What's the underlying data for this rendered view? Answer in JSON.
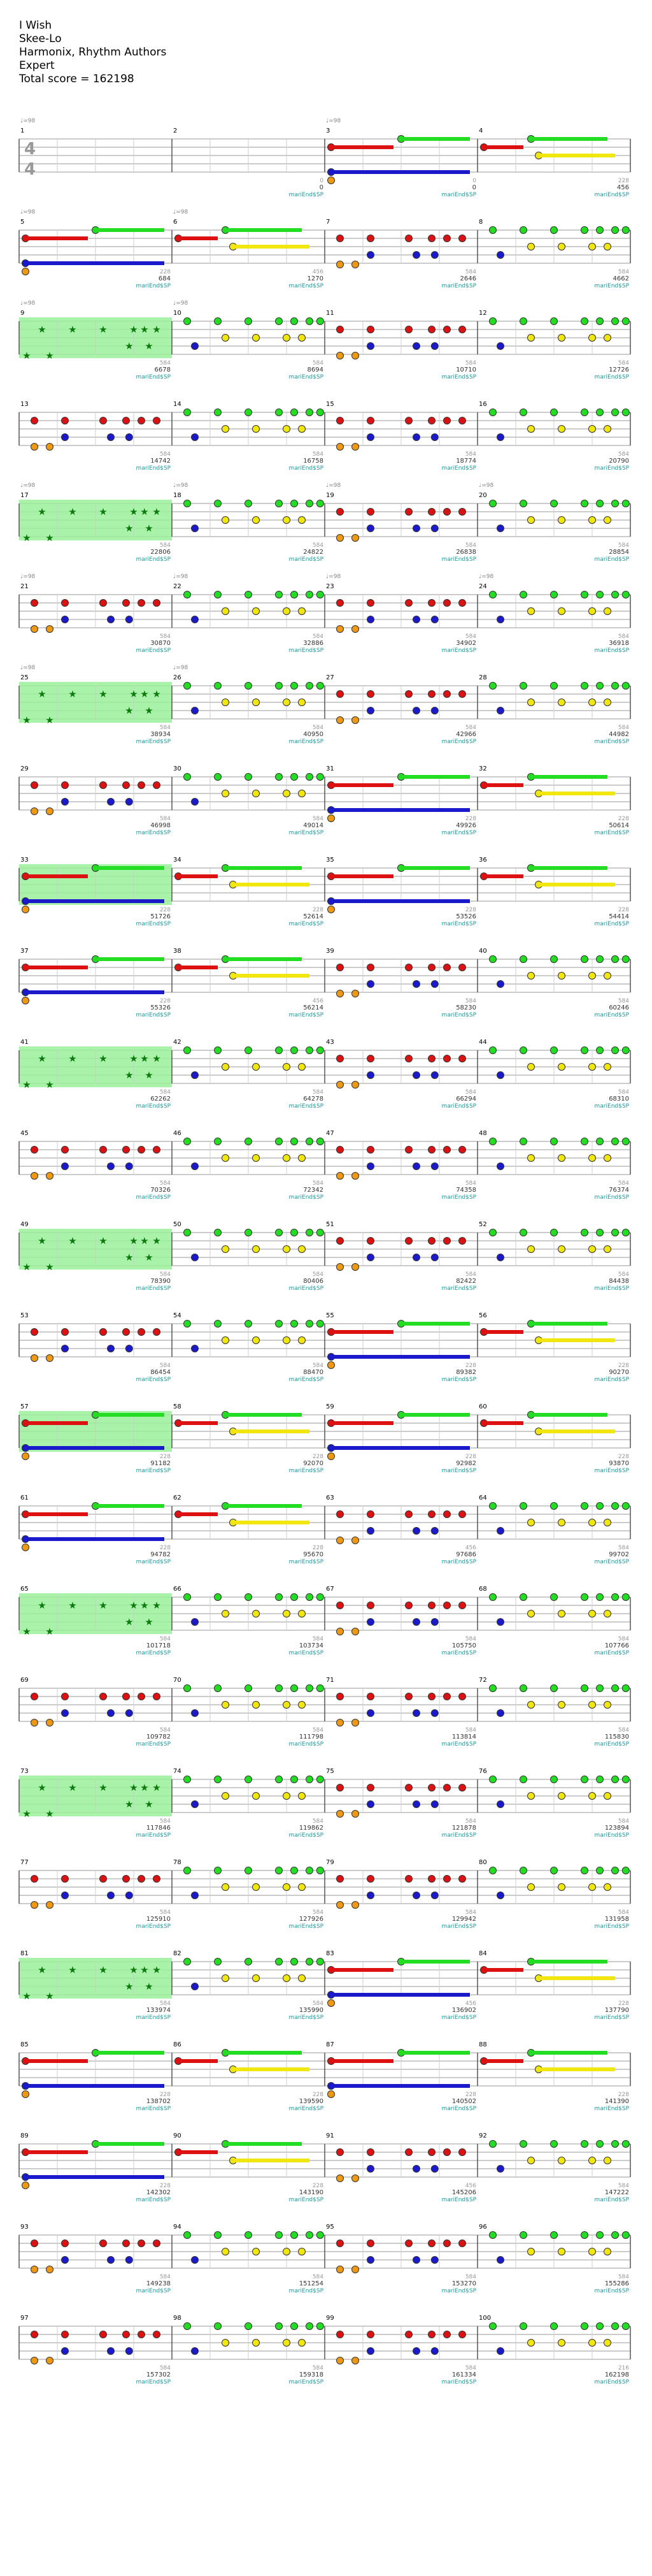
{
  "song": {
    "title": "I Wish",
    "artist": "Skee-Lo",
    "charter": "Harmonix, Rhythm Authors",
    "difficulty": "Expert",
    "total_score_label": "Total score = 162198"
  },
  "time_signature": {
    "numerator": "4",
    "denominator": "4"
  },
  "tempo_label": "♩=98",
  "measure_tag": "mariEnd$SP",
  "colors": {
    "green": "#22dd22",
    "red": "#dd1111",
    "yellow": "#f2e60f",
    "blue": "#1a1acc",
    "orange": "#ee9911",
    "sp": "#9af09a",
    "staff": "#999999"
  },
  "rows": [
    {
      "row": 1,
      "measures": [
        {
          "n": "1",
          "score": "",
          "bar": "",
          "pattern": "empty",
          "sp": false,
          "tempo": true
        },
        {
          "n": "2",
          "score": "0",
          "bar": "0",
          "pattern": "empty",
          "sp": false,
          "tempo": false
        },
        {
          "n": "3",
          "score": "0",
          "bar": "0",
          "pattern": "sustain",
          "sp": false,
          "tempo": true
        },
        {
          "n": "4",
          "score": "228",
          "bar": "456",
          "pattern": "sustain2",
          "sp": false,
          "tempo": false
        }
      ]
    },
    {
      "row": 2,
      "measures": [
        {
          "n": "5",
          "score": "228",
          "bar": "684",
          "pattern": "sustain",
          "sp": false,
          "tempo": true
        },
        {
          "n": "6",
          "score": "456",
          "bar": "1270",
          "pattern": "sustain2",
          "sp": false,
          "tempo": true
        },
        {
          "n": "7",
          "score": "584",
          "bar": "2646",
          "pattern": "red",
          "sp": false,
          "tempo": false
        },
        {
          "n": "8",
          "score": "584",
          "bar": "4662",
          "pattern": "greenyellow",
          "sp": false,
          "tempo": false
        }
      ]
    },
    {
      "row": 3,
      "measures": [
        {
          "n": "9",
          "score": "584",
          "bar": "6678",
          "pattern": "stars",
          "sp": true,
          "tempo": true
        },
        {
          "n": "10",
          "score": "584",
          "bar": "8694",
          "pattern": "greenyellow",
          "sp": false,
          "tempo": true
        },
        {
          "n": "11",
          "score": "584",
          "bar": "10710",
          "pattern": "red",
          "sp": false,
          "tempo": false
        },
        {
          "n": "12",
          "score": "584",
          "bar": "12726",
          "pattern": "greenyellow",
          "sp": false,
          "tempo": false
        }
      ]
    },
    {
      "row": 4,
      "measures": [
        {
          "n": "13",
          "score": "584",
          "bar": "14742",
          "pattern": "red",
          "sp": false,
          "tempo": false
        },
        {
          "n": "14",
          "score": "584",
          "bar": "16758",
          "pattern": "greenyellow",
          "sp": false,
          "tempo": false
        },
        {
          "n": "15",
          "score": "584",
          "bar": "18774",
          "pattern": "red",
          "sp": false,
          "tempo": false
        },
        {
          "n": "16",
          "score": "584",
          "bar": "20790",
          "pattern": "greenyellow",
          "sp": false,
          "tempo": false
        }
      ]
    },
    {
      "row": 5,
      "measures": [
        {
          "n": "17",
          "score": "584",
          "bar": "22806",
          "pattern": "stars",
          "sp": true,
          "tempo": true
        },
        {
          "n": "18",
          "score": "584",
          "bar": "24822",
          "pattern": "greenyellow",
          "sp": false,
          "tempo": true
        },
        {
          "n": "19",
          "score": "584",
          "bar": "26838",
          "pattern": "red",
          "sp": false,
          "tempo": true
        },
        {
          "n": "20",
          "score": "584",
          "bar": "28854",
          "pattern": "greenyellow",
          "sp": false,
          "tempo": true
        }
      ]
    },
    {
      "row": 6,
      "measures": [
        {
          "n": "21",
          "score": "584",
          "bar": "30870",
          "pattern": "red",
          "sp": false,
          "tempo": true
        },
        {
          "n": "22",
          "score": "584",
          "bar": "32886",
          "pattern": "greenyellow",
          "sp": false,
          "tempo": true
        },
        {
          "n": "23",
          "score": "584",
          "bar": "34902",
          "pattern": "red",
          "sp": false,
          "tempo": true
        },
        {
          "n": "24",
          "score": "584",
          "bar": "36918",
          "pattern": "greenyellow",
          "sp": false,
          "tempo": true
        }
      ]
    },
    {
      "row": 7,
      "measures": [
        {
          "n": "25",
          "score": "584",
          "bar": "38934",
          "pattern": "stars",
          "sp": true,
          "tempo": true
        },
        {
          "n": "26",
          "score": "584",
          "bar": "40950",
          "pattern": "greenyellow",
          "sp": false,
          "tempo": true
        },
        {
          "n": "27",
          "score": "584",
          "bar": "42966",
          "pattern": "red",
          "sp": false,
          "tempo": false
        },
        {
          "n": "28",
          "score": "584",
          "bar": "44982",
          "pattern": "greenyellow",
          "sp": false,
          "tempo": false
        }
      ]
    },
    {
      "row": 8,
      "measures": [
        {
          "n": "29",
          "score": "584",
          "bar": "46998",
          "pattern": "red",
          "sp": false,
          "tempo": false
        },
        {
          "n": "30",
          "score": "584",
          "bar": "49014",
          "pattern": "greenyellow",
          "sp": false,
          "tempo": false
        },
        {
          "n": "31",
          "score": "228",
          "bar": "49926",
          "pattern": "sustain",
          "sp": false,
          "tempo": false
        },
        {
          "n": "32",
          "score": "228",
          "bar": "50614",
          "pattern": "sustain2",
          "sp": false,
          "tempo": false
        }
      ]
    },
    {
      "row": 9,
      "measures": [
        {
          "n": "33",
          "score": "228",
          "bar": "51726",
          "pattern": "sustain",
          "sp": true,
          "tempo": false
        },
        {
          "n": "34",
          "score": "228",
          "bar": "52614",
          "pattern": "sustain2",
          "sp": false,
          "tempo": false
        },
        {
          "n": "35",
          "score": "228",
          "bar": "53526",
          "pattern": "sustain",
          "sp": false,
          "tempo": false
        },
        {
          "n": "36",
          "score": "228",
          "bar": "54414",
          "pattern": "sustain2",
          "sp": false,
          "tempo": false
        }
      ]
    },
    {
      "row": 10,
      "measures": [
        {
          "n": "37",
          "score": "228",
          "bar": "55326",
          "pattern": "sustain",
          "sp": false,
          "tempo": false
        },
        {
          "n": "38",
          "score": "456",
          "bar": "56214",
          "pattern": "sustain2",
          "sp": false,
          "tempo": false
        },
        {
          "n": "39",
          "score": "584",
          "bar": "58230",
          "pattern": "red",
          "sp": false,
          "tempo": false
        },
        {
          "n": "40",
          "score": "584",
          "bar": "60246",
          "pattern": "greenyellow",
          "sp": false,
          "tempo": false
        }
      ]
    },
    {
      "row": 11,
      "measures": [
        {
          "n": "41",
          "score": "584",
          "bar": "62262",
          "pattern": "stars",
          "sp": true,
          "tempo": false
        },
        {
          "n": "42",
          "score": "584",
          "bar": "64278",
          "pattern": "greenyellow",
          "sp": false,
          "tempo": false
        },
        {
          "n": "43",
          "score": "584",
          "bar": "66294",
          "pattern": "red",
          "sp": false,
          "tempo": false
        },
        {
          "n": "44",
          "score": "584",
          "bar": "68310",
          "pattern": "greenyellow",
          "sp": false,
          "tempo": false
        }
      ]
    },
    {
      "row": 12,
      "measures": [
        {
          "n": "45",
          "score": "584",
          "bar": "70326",
          "pattern": "red",
          "sp": false,
          "tempo": false
        },
        {
          "n": "46",
          "score": "584",
          "bar": "72342",
          "pattern": "greenyellow",
          "sp": false,
          "tempo": false
        },
        {
          "n": "47",
          "score": "584",
          "bar": "74358",
          "pattern": "red",
          "sp": false,
          "tempo": false
        },
        {
          "n": "48",
          "score": "584",
          "bar": "76374",
          "pattern": "greenyellow",
          "sp": false,
          "tempo": false
        }
      ]
    },
    {
      "row": 13,
      "measures": [
        {
          "n": "49",
          "score": "584",
          "bar": "78390",
          "pattern": "stars",
          "sp": true,
          "tempo": false
        },
        {
          "n": "50",
          "score": "584",
          "bar": "80406",
          "pattern": "greenyellow",
          "sp": false,
          "tempo": false
        },
        {
          "n": "51",
          "score": "584",
          "bar": "82422",
          "pattern": "red",
          "sp": false,
          "tempo": false
        },
        {
          "n": "52",
          "score": "584",
          "bar": "84438",
          "pattern": "greenyellow",
          "sp": false,
          "tempo": false
        }
      ]
    },
    {
      "row": 14,
      "measures": [
        {
          "n": "53",
          "score": "584",
          "bar": "86454",
          "pattern": "red",
          "sp": false,
          "tempo": false
        },
        {
          "n": "54",
          "score": "584",
          "bar": "88470",
          "pattern": "greenyellow",
          "sp": false,
          "tempo": false
        },
        {
          "n": "55",
          "score": "228",
          "bar": "89382",
          "pattern": "sustain",
          "sp": false,
          "tempo": false
        },
        {
          "n": "56",
          "score": "228",
          "bar": "90270",
          "pattern": "sustain2",
          "sp": false,
          "tempo": false
        }
      ]
    },
    {
      "row": 15,
      "measures": [
        {
          "n": "57",
          "score": "228",
          "bar": "91182",
          "pattern": "sustain",
          "sp": true,
          "tempo": false
        },
        {
          "n": "58",
          "score": "228",
          "bar": "92070",
          "pattern": "sustain2",
          "sp": false,
          "tempo": false
        },
        {
          "n": "59",
          "score": "228",
          "bar": "92982",
          "pattern": "sustain",
          "sp": false,
          "tempo": false
        },
        {
          "n": "60",
          "score": "228",
          "bar": "93870",
          "pattern": "sustain2",
          "sp": false,
          "tempo": false
        }
      ]
    },
    {
      "row": 16,
      "measures": [
        {
          "n": "61",
          "score": "228",
          "bar": "94782",
          "pattern": "sustain",
          "sp": false,
          "tempo": false
        },
        {
          "n": "62",
          "score": "228",
          "bar": "95670",
          "pattern": "sustain2",
          "sp": false,
          "tempo": false
        },
        {
          "n": "63",
          "score": "456",
          "bar": "97686",
          "pattern": "red",
          "sp": false,
          "tempo": false
        },
        {
          "n": "64",
          "score": "584",
          "bar": "99702",
          "pattern": "greenyellow",
          "sp": false,
          "tempo": false
        }
      ]
    },
    {
      "row": 17,
      "measures": [
        {
          "n": "65",
          "score": "584",
          "bar": "101718",
          "pattern": "stars",
          "sp": true,
          "tempo": false
        },
        {
          "n": "66",
          "score": "584",
          "bar": "103734",
          "pattern": "greenyellow",
          "sp": false,
          "tempo": false
        },
        {
          "n": "67",
          "score": "584",
          "bar": "105750",
          "pattern": "red",
          "sp": false,
          "tempo": false
        },
        {
          "n": "68",
          "score": "584",
          "bar": "107766",
          "pattern": "greenyellow",
          "sp": false,
          "tempo": false
        }
      ]
    },
    {
      "row": 18,
      "measures": [
        {
          "n": "69",
          "score": "584",
          "bar": "109782",
          "pattern": "red",
          "sp": false,
          "tempo": false
        },
        {
          "n": "70",
          "score": "584",
          "bar": "111798",
          "pattern": "greenyellow",
          "sp": false,
          "tempo": false
        },
        {
          "n": "71",
          "score": "584",
          "bar": "113814",
          "pattern": "red",
          "sp": false,
          "tempo": false
        },
        {
          "n": "72",
          "score": "584",
          "bar": "115830",
          "pattern": "greenyellow",
          "sp": false,
          "tempo": false
        }
      ]
    },
    {
      "row": 19,
      "measures": [
        {
          "n": "73",
          "score": "584",
          "bar": "117846",
          "pattern": "stars",
          "sp": true,
          "tempo": false
        },
        {
          "n": "74",
          "score": "584",
          "bar": "119862",
          "pattern": "greenyellow",
          "sp": false,
          "tempo": false
        },
        {
          "n": "75",
          "score": "584",
          "bar": "121878",
          "pattern": "red",
          "sp": false,
          "tempo": false
        },
        {
          "n": "76",
          "score": "584",
          "bar": "123894",
          "pattern": "greenyellow",
          "sp": false,
          "tempo": false
        }
      ]
    },
    {
      "row": 20,
      "measures": [
        {
          "n": "77",
          "score": "584",
          "bar": "125910",
          "pattern": "red",
          "sp": false,
          "tempo": false
        },
        {
          "n": "78",
          "score": "584",
          "bar": "127926",
          "pattern": "greenyellow",
          "sp": false,
          "tempo": false
        },
        {
          "n": "79",
          "score": "584",
          "bar": "129942",
          "pattern": "red",
          "sp": false,
          "tempo": false
        },
        {
          "n": "80",
          "score": "584",
          "bar": "131958",
          "pattern": "greenyellow",
          "sp": false,
          "tempo": false
        }
      ]
    },
    {
      "row": 21,
      "measures": [
        {
          "n": "81",
          "score": "584",
          "bar": "133974",
          "pattern": "stars",
          "sp": true,
          "tempo": false
        },
        {
          "n": "82",
          "score": "584",
          "bar": "135990",
          "pattern": "greenyellow",
          "sp": false,
          "tempo": false
        },
        {
          "n": "83",
          "score": "456",
          "bar": "136902",
          "pattern": "sustain",
          "sp": false,
          "tempo": false
        },
        {
          "n": "84",
          "score": "228",
          "bar": "137790",
          "pattern": "sustain2",
          "sp": false,
          "tempo": false
        }
      ]
    },
    {
      "row": 22,
      "measures": [
        {
          "n": "85",
          "score": "228",
          "bar": "138702",
          "pattern": "sustain",
          "sp": false,
          "tempo": false
        },
        {
          "n": "86",
          "score": "228",
          "bar": "139590",
          "pattern": "sustain2",
          "sp": false,
          "tempo": false
        },
        {
          "n": "87",
          "score": "228",
          "bar": "140502",
          "pattern": "sustain",
          "sp": false,
          "tempo": false
        },
        {
          "n": "88",
          "score": "228",
          "bar": "141390",
          "pattern": "sustain2",
          "sp": false,
          "tempo": false
        }
      ]
    },
    {
      "row": 23,
      "measures": [
        {
          "n": "89",
          "score": "228",
          "bar": "142302",
          "pattern": "sustain",
          "sp": false,
          "tempo": false
        },
        {
          "n": "90",
          "score": "228",
          "bar": "143190",
          "pattern": "sustain2",
          "sp": false,
          "tempo": false
        },
        {
          "n": "91",
          "score": "456",
          "bar": "145206",
          "pattern": "red",
          "sp": false,
          "tempo": false
        },
        {
          "n": "92",
          "score": "584",
          "bar": "147222",
          "pattern": "greenyellow",
          "sp": false,
          "tempo": false
        }
      ]
    },
    {
      "row": 24,
      "measures": [
        {
          "n": "93",
          "score": "584",
          "bar": "149238",
          "pattern": "red",
          "sp": false,
          "tempo": false
        },
        {
          "n": "94",
          "score": "584",
          "bar": "151254",
          "pattern": "greenyellow",
          "sp": false,
          "tempo": false
        },
        {
          "n": "95",
          "score": "584",
          "bar": "153270",
          "pattern": "red",
          "sp": false,
          "tempo": false
        },
        {
          "n": "96",
          "score": "584",
          "bar": "155286",
          "pattern": "greenyellow",
          "sp": false,
          "tempo": false
        }
      ]
    },
    {
      "row": 25,
      "measures": [
        {
          "n": "97",
          "score": "584",
          "bar": "157302",
          "pattern": "red",
          "sp": false,
          "tempo": false
        },
        {
          "n": "98",
          "score": "584",
          "bar": "159318",
          "pattern": "greenyellow",
          "sp": false,
          "tempo": false
        },
        {
          "n": "99",
          "score": "584",
          "bar": "161334",
          "pattern": "red",
          "sp": false,
          "tempo": false
        },
        {
          "n": "100",
          "score": "216",
          "bar": "162198",
          "pattern": "greenyellow",
          "sp": false,
          "tempo": false
        }
      ]
    }
  ]
}
